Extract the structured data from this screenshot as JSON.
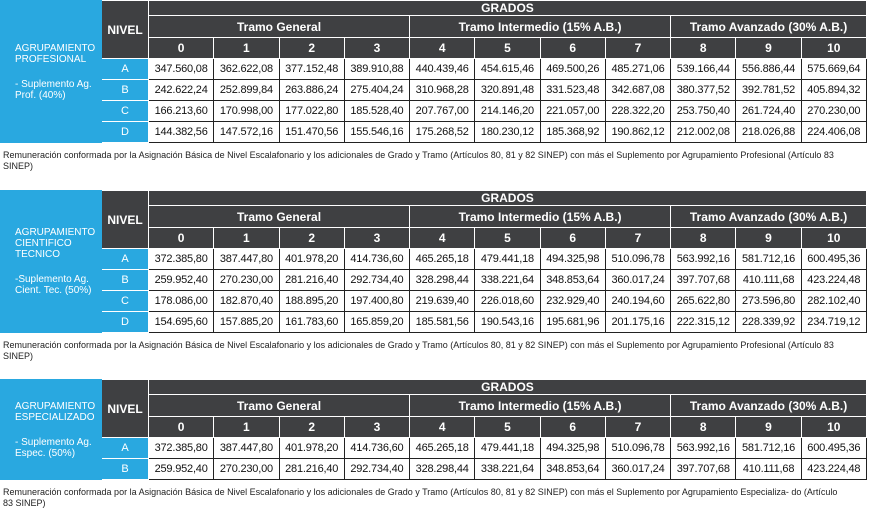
{
  "sections": [
    {
      "group": "AGRUPAMIENTO PROFESIONAL",
      "supplement": "- Suplemento Ag. Prof. (40%)",
      "nivel_header": "NIVEL",
      "grados_header": "GRADOS",
      "tramos": [
        {
          "name": "Tramo General",
          "grados": [
            "0",
            "1",
            "2",
            "3"
          ]
        },
        {
          "name": "Tramo Intermedio (15% A.B.)",
          "grados": [
            "4",
            "5",
            "6",
            "7"
          ]
        },
        {
          "name": "Tramo Avanzado (30% A.B.)",
          "grados": [
            "8",
            "9",
            "10"
          ]
        }
      ],
      "rows": [
        {
          "nivel": "A",
          "values": [
            "347.560,08",
            "362.622,08",
            "377.152,48",
            "389.910,88",
            "440.439,46",
            "454.615,46",
            "469.500,26",
            "485.271,06",
            "539.166,44",
            "556.886,44",
            "575.669,64"
          ]
        },
        {
          "nivel": "B",
          "values": [
            "242.622,24",
            "252.899,84",
            "263.886,24",
            "275.404,24",
            "310.968,28",
            "320.891,48",
            "331.523,48",
            "342.687,08",
            "380.377,52",
            "392.781,52",
            "405.894,32"
          ]
        },
        {
          "nivel": "C",
          "values": [
            "166.213,60",
            "170.998,00",
            "177.022,80",
            "185.528,40",
            "207.767,00",
            "214.146,20",
            "221.057,00",
            "228.322,20",
            "253.750,40",
            "261.724,40",
            "270.230,00"
          ]
        },
        {
          "nivel": "D",
          "values": [
            "144.382,56",
            "147.572,16",
            "151.470,56",
            "155.546,16",
            "175.268,52",
            "180.230,12",
            "185.368,92",
            "190.862,12",
            "212.002,08",
            "218.026,88",
            "224.406,08"
          ]
        }
      ],
      "footnote": "Remuneración conformada por la Asignación Básica de Nivel Escalafonario y los adicionales de Grado y Tramo (Artículos 80, 81 y 82 SINEP) con más el Suplemento por Agrupamiento Profesional (Artículo 83 SINEP)"
    },
    {
      "group": "AGRUPAMIENTO CIENTIFICO TECNICO",
      "supplement": "-Suplemento Ag. Cient. Tec. (50%)",
      "nivel_header": "NIVEL",
      "grados_header": "GRADOS",
      "tramos": [
        {
          "name": "Tramo General",
          "grados": [
            "0",
            "1",
            "2",
            "3"
          ]
        },
        {
          "name": "Tramo Intermedio (15% A.B.)",
          "grados": [
            "4",
            "5",
            "6",
            "7"
          ]
        },
        {
          "name": "Tramo Avanzado (30% A.B.)",
          "grados": [
            "8",
            "9",
            "10"
          ]
        }
      ],
      "rows": [
        {
          "nivel": "A",
          "values": [
            "372.385,80",
            "387.447,80",
            "401.978,20",
            "414.736,60",
            "465.265,18",
            "479.441,18",
            "494.325,98",
            "510.096,78",
            "563.992,16",
            "581.712,16",
            "600.495,36"
          ]
        },
        {
          "nivel": "B",
          "values": [
            "259.952,40",
            "270.230,00",
            "281.216,40",
            "292.734,40",
            "328.298,44",
            "338.221,64",
            "348.853,64",
            "360.017,24",
            "397.707,68",
            "410.111,68",
            "423.224,48"
          ]
        },
        {
          "nivel": "C",
          "values": [
            "178.086,00",
            "182.870,40",
            "188.895,20",
            "197.400,80",
            "219.639,40",
            "226.018,60",
            "232.929,40",
            "240.194,60",
            "265.622,80",
            "273.596,80",
            "282.102,40"
          ]
        },
        {
          "nivel": "D",
          "values": [
            "154.695,60",
            "157.885,20",
            "161.783,60",
            "165.859,20",
            "185.581,56",
            "190.543,16",
            "195.681,96",
            "201.175,16",
            "222.315,12",
            "228.339,92",
            "234.719,12"
          ]
        }
      ],
      "footnote": "Remuneración conformada por la Asignación Básica de Nivel Escalafonario y los adicionales de Grado y Tramo (Artículos 80, 81 y 82 SINEP) con más el Suplemento por Agrupamiento Profesional (Artículo 83 SINEP)"
    },
    {
      "group": "AGRUPAMIENTO ESPECIALIZADO",
      "supplement": "- Suplemento Ag. Espec. (50%)",
      "nivel_header": "NIVEL",
      "grados_header": "GRADOS",
      "tramos": [
        {
          "name": "Tramo General",
          "grados": [
            "0",
            "1",
            "2",
            "3"
          ]
        },
        {
          "name": "Tramo Intermedio (15% A.B.)",
          "grados": [
            "4",
            "5",
            "6",
            "7"
          ]
        },
        {
          "name": "Tramo Avanzado (30% A.B.)",
          "grados": [
            "8",
            "9",
            "10"
          ]
        }
      ],
      "rows": [
        {
          "nivel": "A",
          "values": [
            "372.385,80",
            "387.447,80",
            "401.978,20",
            "414.736,60",
            "465.265,18",
            "479.441,18",
            "494.325,98",
            "510.096,78",
            "563.992,16",
            "581.712,16",
            "600.495,36"
          ]
        },
        {
          "nivel": "B",
          "values": [
            "259.952,40",
            "270.230,00",
            "281.216,40",
            "292.734,40",
            "328.298,44",
            "338.221,64",
            "348.853,64",
            "360.017,24",
            "397.707,68",
            "410.111,68",
            "423.224,48"
          ]
        }
      ],
      "footnote": "Remuneración conformada por la Asignación Básica de Nivel Escalafonario y los adicionales de Grado y Tramo (Artículos 80, 81 y 82 SINEP) con más el Suplemento por Agrupamiento Especializa- do (Artículo 83 SINEP)"
    }
  ]
}
